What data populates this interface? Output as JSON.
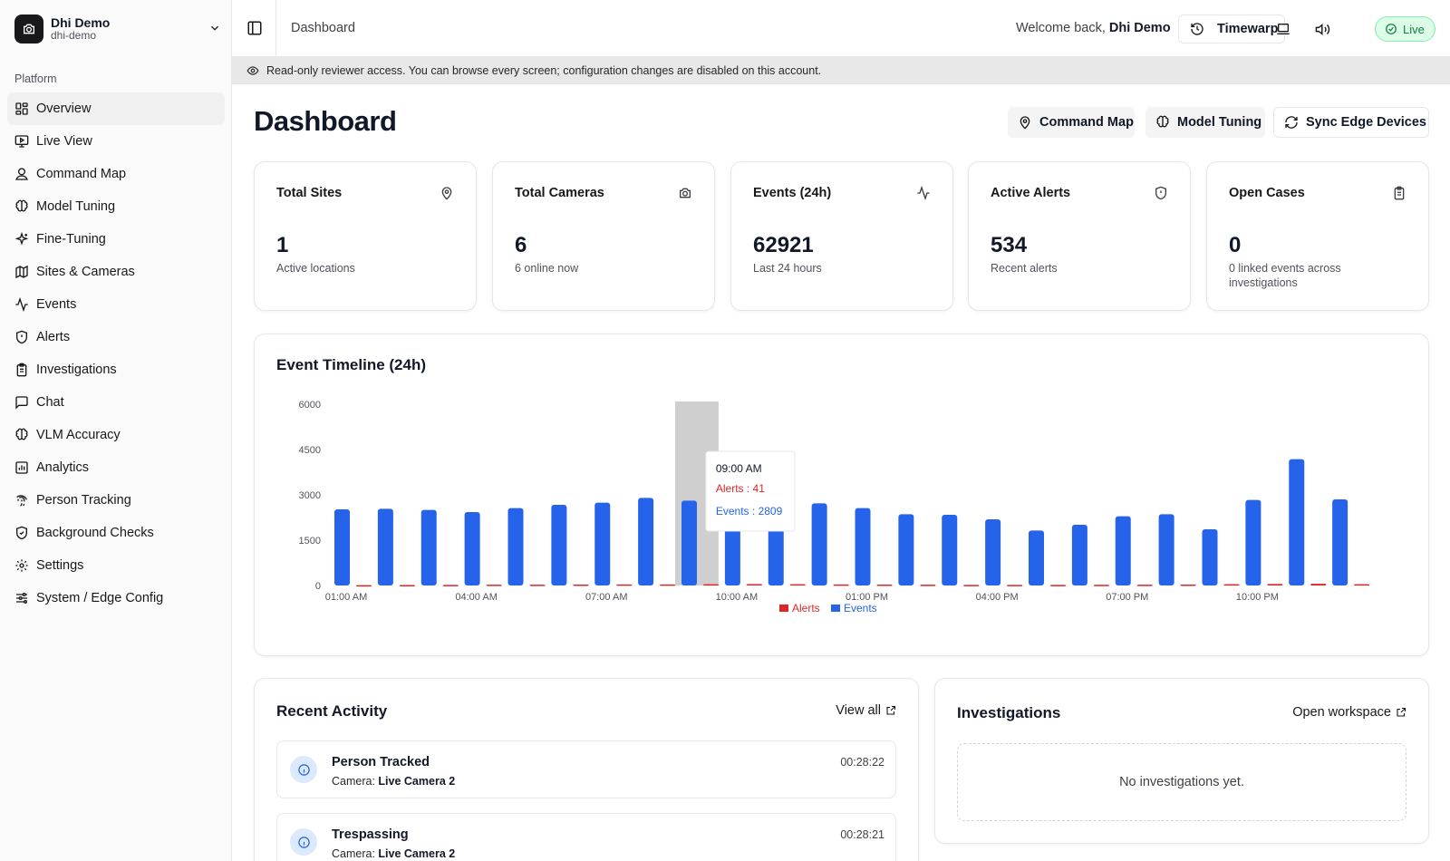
{
  "org": {
    "name": "Dhi Demo",
    "slug": "dhi-demo"
  },
  "sidebar": {
    "group_label": "Platform",
    "items": [
      {
        "label": "Overview",
        "icon": "grid-icon",
        "active": true
      },
      {
        "label": "Live View",
        "icon": "monitor-play-icon"
      },
      {
        "label": "Command Map",
        "icon": "user-pin-icon"
      },
      {
        "label": "Model Tuning",
        "icon": "brain-icon"
      },
      {
        "label": "Fine-Tuning",
        "icon": "sparkles-icon"
      },
      {
        "label": "Sites & Cameras",
        "icon": "map-icon"
      },
      {
        "label": "Events",
        "icon": "activity-icon"
      },
      {
        "label": "Alerts",
        "icon": "shield-alert-icon"
      },
      {
        "label": "Investigations",
        "icon": "clipboard-icon"
      },
      {
        "label": "Chat",
        "icon": "message-square-icon"
      },
      {
        "label": "VLM Accuracy",
        "icon": "brain-icon"
      },
      {
        "label": "Analytics",
        "icon": "chart-icon"
      },
      {
        "label": "Person Tracking",
        "icon": "fingerprint-icon"
      },
      {
        "label": "Background Checks",
        "icon": "shield-check-icon"
      },
      {
        "label": "Settings",
        "icon": "gear-icon"
      },
      {
        "label": "System / Edge Config",
        "icon": "sliders-icon"
      }
    ]
  },
  "header": {
    "breadcrumb": "Dashboard",
    "welcome_prefix": "Welcome back,",
    "welcome_name": "Dhi Demo",
    "timewarp_label": "Timewarp",
    "live_label": "Live"
  },
  "banner": {
    "text": "Read-only reviewer access. You can browse every screen; configuration changes are disabled on this account."
  },
  "page": {
    "title": "Dashboard",
    "actions": {
      "command_map": "Command Map",
      "model_tuning": "Model Tuning",
      "sync": "Sync Edge Devices"
    }
  },
  "stats": [
    {
      "title": "Total Sites",
      "value": "1",
      "sub": "Active locations",
      "icon": "map-pin-icon"
    },
    {
      "title": "Total Cameras",
      "value": "6",
      "sub": "6 online now",
      "icon": "camera-icon"
    },
    {
      "title": "Events (24h)",
      "value": "62921",
      "sub": "Last 24 hours",
      "icon": "activity-icon"
    },
    {
      "title": "Active Alerts",
      "value": "534",
      "sub": "Recent alerts",
      "icon": "shield-alert-icon"
    },
    {
      "title": "Open Cases",
      "value": "0",
      "sub": "0 linked events across investigations",
      "icon": "clipboard-icon"
    }
  ],
  "chart_card_title": "Event Timeline (24h)",
  "chart_data": {
    "type": "bar",
    "title": "Event Timeline (24h)",
    "ylim": [
      0,
      6000
    ],
    "yticks": [
      0,
      1500,
      3000,
      4500,
      6000
    ],
    "x_labels": [
      "01:00 AM",
      "04:00 AM",
      "07:00 AM",
      "10:00 AM",
      "01:00 PM",
      "04:00 PM",
      "07:00 PM",
      "10:00 PM"
    ],
    "categories": [
      "01:00 AM",
      "02:00 AM",
      "03:00 AM",
      "04:00 AM",
      "05:00 AM",
      "06:00 AM",
      "07:00 AM",
      "08:00 AM",
      "09:00 AM",
      "10:00 AM",
      "11:00 AM",
      "12:00 PM",
      "01:00 PM",
      "02:00 PM",
      "03:00 PM",
      "04:00 PM",
      "05:00 PM",
      "06:00 PM",
      "07:00 PM",
      "08:00 PM",
      "09:00 PM",
      "10:00 PM",
      "11:00 PM",
      "12:00 AM"
    ],
    "series": [
      {
        "name": "Alerts",
        "color": "#dc2626",
        "values": [
          10,
          15,
          20,
          25,
          28,
          30,
          32,
          35,
          41,
          45,
          40,
          35,
          30,
          25,
          20,
          18,
          20,
          22,
          25,
          30,
          40,
          50,
          55,
          40
        ]
      },
      {
        "name": "Events",
        "color": "#2563eb",
        "values": [
          2520,
          2540,
          2500,
          2430,
          2560,
          2670,
          2740,
          2900,
          2809,
          2830,
          2600,
          2720,
          2560,
          2360,
          2340,
          2190,
          1820,
          2010,
          2290,
          2360,
          1860,
          2830,
          4180,
          2850
        ]
      }
    ],
    "legend": "bottom-center",
    "tooltip": {
      "index": 8,
      "label": "09:00 AM",
      "alerts_text": "Alerts : 41",
      "events_text": "Events : 2809"
    }
  },
  "recent_activity": {
    "title": "Recent Activity",
    "link": "View all",
    "camera_prefix": "Camera:",
    "items": [
      {
        "title": "Person Tracked",
        "camera": "Live Camera 2",
        "time": "00:28:22"
      },
      {
        "title": "Trespassing",
        "camera": "Live Camera 2",
        "time": "00:28:21"
      }
    ]
  },
  "investigations": {
    "title": "Investigations",
    "link": "Open workspace",
    "empty": "No investigations yet."
  }
}
